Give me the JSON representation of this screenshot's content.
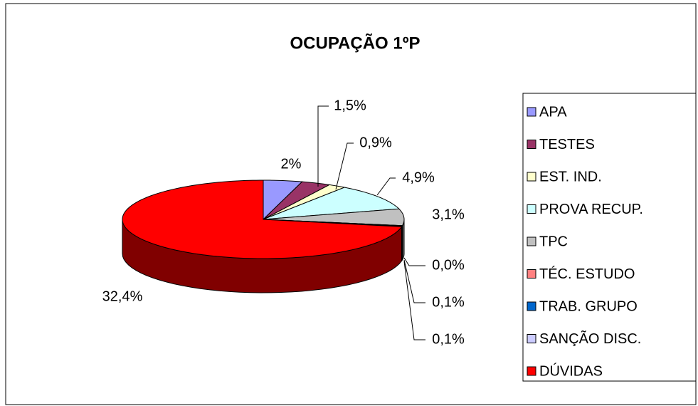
{
  "chart_data": {
    "type": "pie",
    "title": "OCUPAÇÃO 1ºP",
    "categories": [
      "APA",
      "TESTES",
      "EST. IND.",
      "PROVA RECUP.",
      "TPC",
      "TÉC. ESTUDO",
      "TRAB. GRUPO",
      "SANÇÃO DISC.",
      "DÚVIDAS"
    ],
    "values": [
      2,
      1.5,
      0.9,
      4.9,
      3.1,
      0.0,
      0.1,
      0.1,
      32.4
    ],
    "value_labels": [
      "2%",
      "1,5%",
      "0,9%",
      "4,9%",
      "3,1%",
      "0,0%",
      "0,1%",
      "0,1%",
      "32,4%"
    ],
    "colors": [
      "#9999ff",
      "#993366",
      "#ffffcc",
      "#ccffff",
      "#c0c0c0",
      "#ff8080",
      "#0066cc",
      "#ccccff",
      "#ff0000"
    ],
    "legend": "right"
  }
}
